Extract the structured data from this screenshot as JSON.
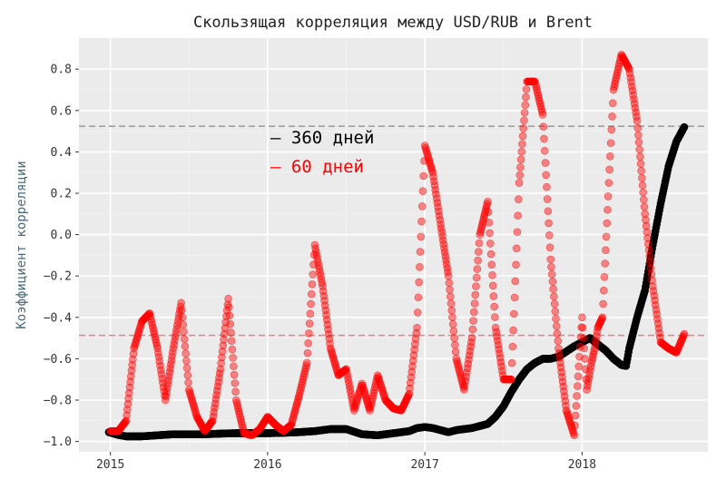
{
  "chart_data": {
    "type": "scatter",
    "title": "Скользящая корреляция между USD/RUB и Brent",
    "xlabel": "",
    "ylabel": "Коэффициент корреляции",
    "xlim": [
      2014.8,
      2018.8
    ],
    "ylim": [
      -1.05,
      0.95
    ],
    "x_ticks": [
      2015,
      2016,
      2017,
      2018
    ],
    "x_tick_labels": [
      "2015",
      "2016",
      "2017",
      "2018"
    ],
    "y_ticks": [
      -1.0,
      -0.8,
      -0.6,
      -0.4,
      -0.2,
      0.0,
      0.2,
      0.4,
      0.6,
      0.8
    ],
    "y_tick_labels": [
      "−1.0",
      "−0.8",
      "−0.6",
      "−0.4",
      "−0.2",
      "0.0",
      "0.2",
      "0.4",
      "0.6",
      "0.8"
    ],
    "grid": true,
    "legend_position": "center",
    "reference_lines": [
      {
        "y": 0.524,
        "color": "#999999",
        "style": "dashed"
      },
      {
        "y": -0.487,
        "color": "#f08080",
        "style": "dashed"
      }
    ],
    "series": [
      {
        "name": "– 360 дней",
        "color": "#000000",
        "x": [
          2014.99,
          2015.05,
          2015.1,
          2015.2,
          2015.3,
          2015.4,
          2015.5,
          2015.6,
          2015.7,
          2015.8,
          2015.9,
          2016.0,
          2016.1,
          2016.2,
          2016.3,
          2016.4,
          2016.5,
          2016.6,
          2016.7,
          2016.8,
          2016.9,
          2016.95,
          2017.0,
          2017.05,
          2017.1,
          2017.15,
          2017.2,
          2017.25,
          2017.3,
          2017.35,
          2017.4,
          2017.45,
          2017.5,
          2017.55,
          2017.6,
          2017.65,
          2017.7,
          2017.75,
          2017.8,
          2017.85,
          2017.9,
          2017.95,
          2018.0,
          2018.05,
          2018.1,
          2018.15,
          2018.2,
          2018.25,
          2018.28,
          2018.3,
          2018.35,
          2018.4,
          2018.45,
          2018.5,
          2018.55,
          2018.6,
          2018.65
        ],
        "y": [
          -0.955,
          -0.968,
          -0.975,
          -0.975,
          -0.97,
          -0.965,
          -0.965,
          -0.965,
          -0.962,
          -0.96,
          -0.96,
          -0.96,
          -0.958,
          -0.955,
          -0.95,
          -0.94,
          -0.94,
          -0.965,
          -0.97,
          -0.96,
          -0.95,
          -0.935,
          -0.93,
          -0.935,
          -0.945,
          -0.955,
          -0.945,
          -0.94,
          -0.935,
          -0.925,
          -0.915,
          -0.88,
          -0.83,
          -0.76,
          -0.7,
          -0.65,
          -0.62,
          -0.6,
          -0.6,
          -0.59,
          -0.565,
          -0.54,
          -0.52,
          -0.5,
          -0.53,
          -0.56,
          -0.6,
          -0.63,
          -0.635,
          -0.55,
          -0.4,
          -0.27,
          -0.05,
          0.15,
          0.33,
          0.45,
          0.52
        ]
      },
      {
        "name": "– 60 дней",
        "color": "#ff0000",
        "x": [
          2015.0,
          2015.05,
          2015.1,
          2015.15,
          2015.2,
          2015.25,
          2015.3,
          2015.35,
          2015.4,
          2015.45,
          2015.5,
          2015.55,
          2015.6,
          2015.65,
          2015.7,
          2015.75,
          2015.8,
          2015.85,
          2015.9,
          2015.95,
          2016.0,
          2016.05,
          2016.1,
          2016.15,
          2016.2,
          2016.25,
          2016.3,
          2016.35,
          2016.4,
          2016.45,
          2016.5,
          2016.55,
          2016.6,
          2016.65,
          2016.7,
          2016.75,
          2016.8,
          2016.85,
          2016.9,
          2016.95,
          2017.0,
          2017.05,
          2017.1,
          2017.15,
          2017.2,
          2017.25,
          2017.3,
          2017.35,
          2017.4,
          2017.45,
          2017.5,
          2017.55,
          2017.6,
          2017.65,
          2017.7,
          2017.75,
          2017.8,
          2017.85,
          2017.9,
          2017.95,
          2018.0,
          2018.03,
          2018.06,
          2018.08,
          2018.1,
          2018.13,
          2018.17,
          2018.2,
          2018.25,
          2018.3,
          2018.35,
          2018.4,
          2018.45,
          2018.5,
          2018.55,
          2018.6,
          2018.65
        ],
        "y": [
          -0.95,
          -0.95,
          -0.9,
          -0.55,
          -0.42,
          -0.38,
          -0.55,
          -0.8,
          -0.55,
          -0.33,
          -0.75,
          -0.88,
          -0.95,
          -0.9,
          -0.65,
          -0.31,
          -0.8,
          -0.96,
          -0.97,
          -0.94,
          -0.88,
          -0.92,
          -0.95,
          -0.92,
          -0.78,
          -0.62,
          -0.05,
          -0.25,
          -0.55,
          -0.68,
          -0.65,
          -0.85,
          -0.72,
          -0.85,
          -0.68,
          -0.8,
          -0.84,
          -0.85,
          -0.77,
          -0.45,
          0.43,
          0.3,
          0.05,
          -0.2,
          -0.6,
          -0.75,
          -0.5,
          0.0,
          0.16,
          -0.45,
          -0.7,
          -0.7,
          0.25,
          0.74,
          0.74,
          0.58,
          -0.12,
          -0.55,
          -0.85,
          -0.97,
          -0.4,
          -0.75,
          -0.62,
          -0.55,
          -0.45,
          -0.4,
          0.25,
          0.7,
          0.87,
          0.8,
          0.55,
          0.1,
          -0.25,
          -0.52,
          -0.55,
          -0.57,
          -0.48
        ]
      }
    ]
  }
}
